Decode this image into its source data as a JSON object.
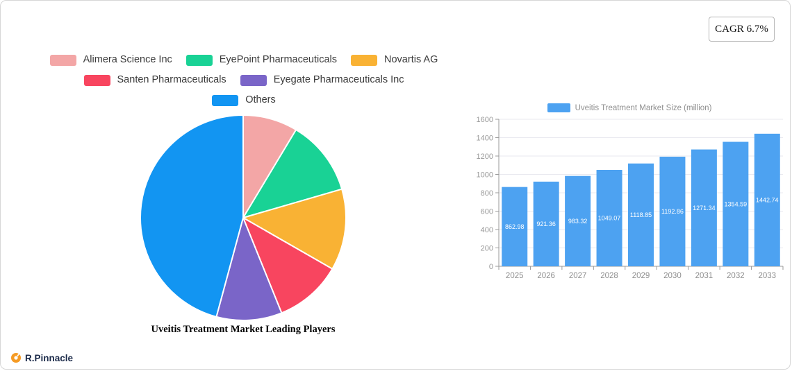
{
  "cagr_badge": "CAGR 6.7%",
  "logo_text": "R.Pinnacle",
  "accent_colors": {
    "logo_orange": "#f59b25",
    "logo_text_navy": "#1c2b4a"
  },
  "chart_data": [
    {
      "type": "pie",
      "title": "Uveitis Treatment Market Leading Players",
      "labels": [
        "Alimera Science Inc",
        "EyePoint Pharmaceuticals",
        "Novartis AG",
        "Santen Pharmaceuticals",
        "Eyegate Pharmaceuticals Inc",
        "Others"
      ],
      "values": [
        8.6,
        11.9,
        12.8,
        10.6,
        10.3,
        45.8
      ],
      "colors": [
        "#f3a6a6",
        "#19d295",
        "#f9b234",
        "#f8455f",
        "#7a65c8",
        "#1295f2"
      ],
      "legend_position": "top",
      "start_angle": "top",
      "direction": "clockwise"
    },
    {
      "type": "bar",
      "legend": [
        "Uveitis Treatment Market Size (million)"
      ],
      "legend_position": "top",
      "categories": [
        "2025",
        "2026",
        "2027",
        "2028",
        "2029",
        "2030",
        "2031",
        "2032",
        "2033"
      ],
      "values": [
        862.98,
        921.36,
        983.32,
        1049.07,
        1118.85,
        1192.86,
        1271.34,
        1354.59,
        1442.74
      ],
      "value_labels": [
        "862.98",
        "921.36",
        "983.32",
        "1049.07",
        "1118.85",
        "1192.86",
        "1271.34",
        "1354.59",
        "1442.74"
      ],
      "bar_color": "#4da2f1",
      "ylim": [
        0,
        1600
      ],
      "ytick_step": 200,
      "grid": true
    }
  ]
}
